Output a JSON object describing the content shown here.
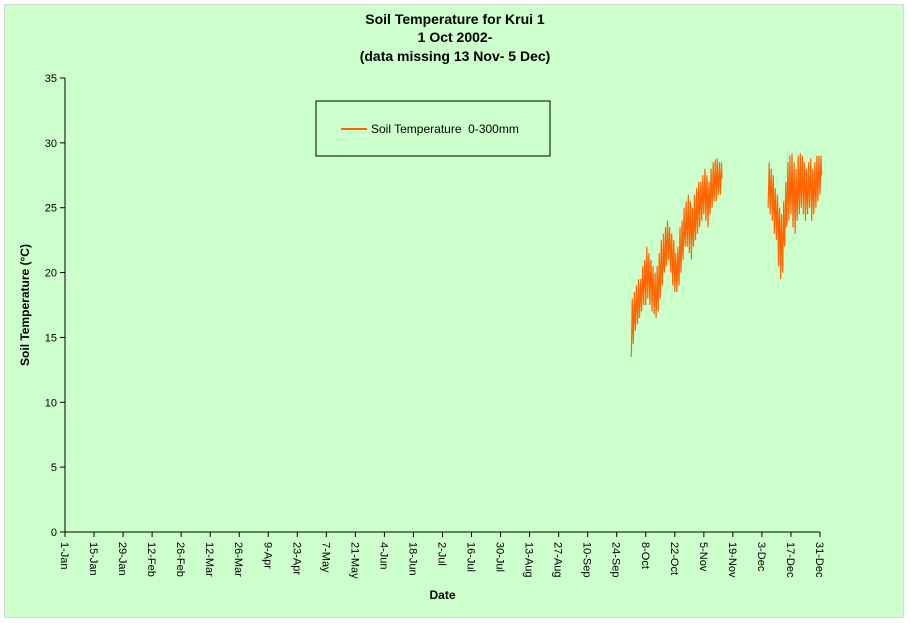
{
  "chart_data": {
    "type": "line",
    "title_lines": [
      "Soil Temperature for Krui 1",
      "1 Oct 2002-",
      "(data missing 13 Nov- 5 Dec)"
    ],
    "xlabel": "Date",
    "ylabel": "Soil Temperature (°C)",
    "ylim": [
      0,
      35
    ],
    "yticks": [
      0,
      5,
      10,
      15,
      20,
      25,
      30,
      35
    ],
    "xlim_day_of_year": [
      1,
      365
    ],
    "xtick_labels": [
      "1-Jan",
      "15-Jan",
      "29-Jan",
      "12-Feb",
      "26-Feb",
      "12-Mar",
      "26-Mar",
      "9-Apr",
      "23-Apr",
      "7-May",
      "21-May",
      "4-Jun",
      "18-Jun",
      "2-Jul",
      "16-Jul",
      "30-Jul",
      "13-Aug",
      "27-Aug",
      "10-Sep",
      "24-Sep",
      "8-Oct",
      "22-Oct",
      "5-Nov",
      "19-Nov",
      "3-Dec",
      "17-Dec",
      "31-Dec"
    ],
    "xtick_day_of_year": [
      1,
      15,
      29,
      43,
      57,
      71,
      85,
      99,
      113,
      127,
      141,
      155,
      169,
      183,
      197,
      211,
      225,
      239,
      253,
      267,
      281,
      295,
      309,
      323,
      337,
      351,
      365
    ],
    "grid": false,
    "legend_position": "top-center",
    "series": [
      {
        "name": "Soil Temperature  0-300mm",
        "color": "#ff6600",
        "segments": [
          {
            "x_day_of_year": [
              274,
              275,
              276,
              277,
              278,
              279,
              280,
              281,
              282,
              283,
              284,
              285,
              286,
              287,
              288,
              289,
              290,
              291,
              292,
              293,
              294,
              295,
              296,
              297,
              298,
              299,
              300,
              301,
              302,
              303,
              304,
              305,
              306,
              307,
              308,
              309,
              310,
              311,
              312,
              313,
              314,
              315,
              316,
              317
            ],
            "daily_min": [
              13.5,
              14.5,
              15.5,
              16.0,
              16.5,
              17.0,
              17.5,
              17.5,
              18.0,
              17.5,
              17.0,
              16.8,
              16.5,
              17.0,
              18.0,
              19.0,
              20.0,
              20.5,
              21.0,
              20.0,
              19.0,
              18.5,
              18.5,
              19.0,
              20.0,
              21.0,
              22.0,
              22.0,
              21.5,
              21.0,
              22.0,
              22.5,
              23.0,
              23.5,
              24.0,
              24.5,
              24.0,
              23.5,
              24.5,
              25.0,
              25.5,
              25.5,
              26.0,
              26.0
            ],
            "daily_max": [
              18.0,
              18.5,
              19.0,
              19.5,
              19.5,
              20.5,
              21.0,
              22.0,
              21.5,
              21.0,
              20.5,
              20.0,
              20.5,
              21.5,
              22.5,
              23.0,
              23.5,
              24.0,
              23.5,
              23.0,
              22.5,
              21.5,
              22.0,
              23.5,
              24.0,
              25.0,
              25.5,
              26.0,
              25.5,
              25.0,
              26.0,
              26.5,
              27.0,
              27.0,
              27.5,
              28.0,
              27.5,
              27.0,
              28.0,
              28.5,
              28.7,
              28.8,
              28.5,
              28.5
            ]
          },
          {
            "x_day_of_year": [
              340,
              341,
              342,
              343,
              344,
              345,
              346,
              347,
              348,
              349,
              350,
              351,
              352,
              353,
              354,
              355,
              356,
              357,
              358,
              359,
              360,
              361,
              362,
              363,
              364,
              365
            ],
            "daily_min": [
              25.0,
              24.5,
              24.0,
              23.0,
              22.5,
              20.5,
              19.5,
              20.0,
              22.0,
              23.5,
              24.0,
              24.5,
              23.5,
              23.0,
              24.0,
              24.5,
              25.0,
              24.5,
              24.0,
              24.5,
              25.0,
              24.0,
              24.5,
              25.0,
              25.5,
              26.0
            ],
            "daily_max": [
              28.5,
              28.0,
              27.5,
              26.5,
              26.0,
              25.0,
              24.5,
              25.5,
              27.0,
              28.5,
              29.0,
              29.2,
              28.5,
              28.0,
              29.0,
              29.2,
              29.0,
              28.5,
              28.0,
              28.5,
              28.8,
              28.0,
              28.5,
              29.0,
              29.0,
              29.0
            ]
          }
        ]
      }
    ]
  }
}
